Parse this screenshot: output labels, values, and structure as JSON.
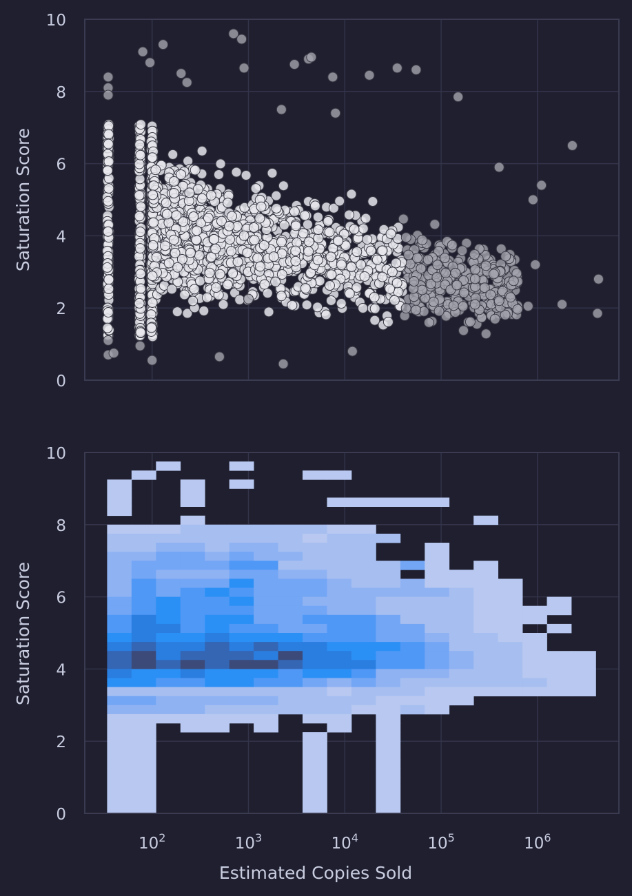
{
  "colors": {
    "background": "#1f1f2f",
    "grid": "#33334a",
    "spine": "#3a3a50",
    "text": "#c9cde0",
    "scatter_fill": "#e6e6ec",
    "scatter_edge": "#3a3a46",
    "hist_low": "#b8c8f0",
    "hist_mid": "#2b90f5",
    "hist_high": "#3c4a7a"
  },
  "chart_data": [
    {
      "type": "scatter",
      "panel": "top",
      "xscale": "log",
      "x_unit": "Estimated Copies Sold",
      "xlim": [
        20,
        7000000
      ],
      "ylim": [
        0,
        10
      ],
      "xlabel": "",
      "ylabel": "Saturation Score",
      "yticks": [
        "0",
        "2",
        "4",
        "6",
        "8",
        "10"
      ],
      "xtick_labels": [],
      "grid": true,
      "representative_points": [
        {
          "x": 35,
          "y": 8.4
        },
        {
          "x": 35,
          "y": 8.1
        },
        {
          "x": 35,
          "y": 7.9
        },
        {
          "x": 35,
          "y": 1.1
        },
        {
          "x": 35,
          "y": 0.7
        },
        {
          "x": 40,
          "y": 0.75
        },
        {
          "x": 75,
          "y": 0.95
        },
        {
          "x": 80,
          "y": 9.1
        },
        {
          "x": 95,
          "y": 8.8
        },
        {
          "x": 100,
          "y": 0.55
        },
        {
          "x": 130,
          "y": 9.3
        },
        {
          "x": 200,
          "y": 8.5
        },
        {
          "x": 230,
          "y": 8.25
        },
        {
          "x": 500,
          "y": 0.65
        },
        {
          "x": 700,
          "y": 9.6
        },
        {
          "x": 850,
          "y": 9.45
        },
        {
          "x": 900,
          "y": 8.65
        },
        {
          "x": 2300,
          "y": 0.45
        },
        {
          "x": 3000,
          "y": 8.75
        },
        {
          "x": 4200,
          "y": 8.9
        },
        {
          "x": 4500,
          "y": 8.95
        },
        {
          "x": 7500,
          "y": 8.4
        },
        {
          "x": 18000,
          "y": 8.45
        },
        {
          "x": 35000,
          "y": 8.65
        },
        {
          "x": 55000,
          "y": 8.6
        },
        {
          "x": 8000,
          "y": 7.4
        },
        {
          "x": 150000,
          "y": 7.85
        },
        {
          "x": 400000,
          "y": 5.9
        },
        {
          "x": 2300000,
          "y": 6.5
        },
        {
          "x": 1100000,
          "y": 5.4
        },
        {
          "x": 900000,
          "y": 5.0
        },
        {
          "x": 800000,
          "y": 2.05
        },
        {
          "x": 1800000,
          "y": 2.1
        },
        {
          "x": 4300000,
          "y": 2.8
        },
        {
          "x": 4200000,
          "y": 1.85
        },
        {
          "x": 950000,
          "y": 3.2
        },
        {
          "x": 400000,
          "y": 2.2
        },
        {
          "x": 12000,
          "y": 0.8
        },
        {
          "x": 2200,
          "y": 7.5
        },
        {
          "x": 1000,
          "y": 2.25
        }
      ],
      "density_note_hidden": false
    },
    {
      "type": "heatmap",
      "panel": "bottom",
      "xscale": "log",
      "xlim": [
        20,
        7000000
      ],
      "ylim": [
        0,
        10
      ],
      "xlabel": "Estimated Copies Sold",
      "ylabel": "Saturation Score",
      "yticks": [
        "0",
        "2",
        "4",
        "6",
        "8",
        "10"
      ],
      "xticks": [
        {
          "base": "10",
          "exp": "2",
          "value": 100
        },
        {
          "base": "10",
          "exp": "3",
          "value": 1000
        },
        {
          "base": "10",
          "exp": "4",
          "value": 10000
        },
        {
          "base": "10",
          "exp": "5",
          "value": 100000
        },
        {
          "base": "10",
          "exp": "6",
          "value": 1000000
        }
      ],
      "grid": true,
      "x_bin_log_start": 1.5328,
      "x_bin_log_width": 0.2536,
      "y_bin_start": 0.5,
      "y_bin_height": 0.5,
      "intensity_scale": "0 = empty, 1 = lightest, 9 = densest",
      "rows_top_to_bottom": [
        "00000000000000000000",
        "00100100000000000000",
        "01000000110000000000",
        "10010100000000000000",
        "10010000000000000000",
        "10010000011111000000",
        "10000000000000000000",
        "00010000000000010000",
        "11122222211000000000",
        "22222222122200000000",
        "22332332222001000000",
        "33443433222001000000",
        "34444552222241010000",
        "34333443322201110000",
        "35444644432231111000",
        "35456544433333211000",
        "45655644333222211010",
        "45655544433222211110",
        "57656644555422211100",
        "57756554455442211010",
        "67667666555443221100",
        "78778787766654222100",
        "89788879776554322111",
        "89898998777554322111",
        "76676665665333222111",
        "66556655434322222211",
        "22222222212221111111",
        "44333332222111100000",
        "33332222221121000000",
        "11111110110100000000",
        "11011010010100000000",
        "11000000100100000000",
        "11000000100100000000",
        "11000000100100000000",
        "11000000100100000000",
        "11000000100100000000",
        "11000000100100000000",
        "11000000100100000000",
        "11000000100100000000",
        "11000000100100000000"
      ]
    }
  ]
}
